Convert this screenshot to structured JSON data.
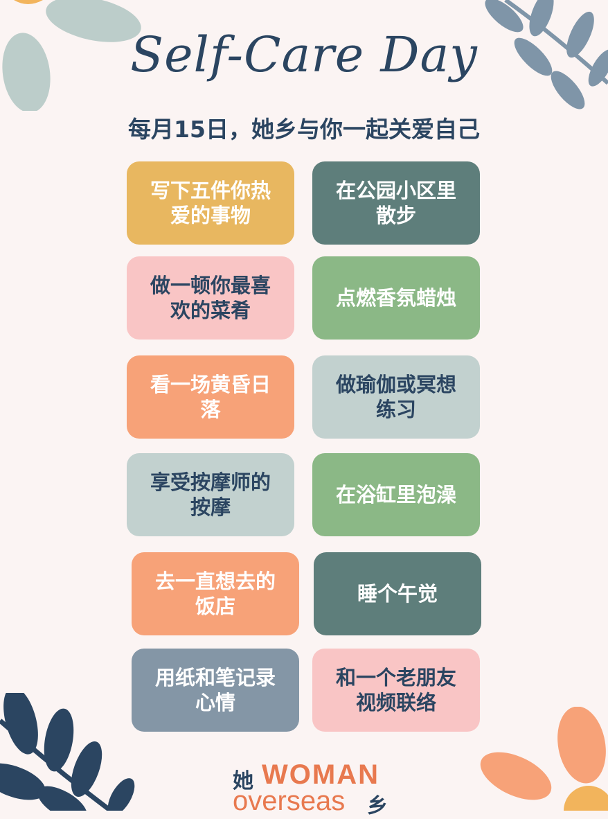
{
  "header": {
    "title": "Self-Care Day",
    "subtitle": "每月15日，她乡与你一起关爱自己"
  },
  "cards": [
    {
      "text": "写下五件你热爱的事物",
      "bg": "#e8b760",
      "fg": "#ffffff"
    },
    {
      "text": "在公园小区里散步",
      "bg": "#5e7e7b",
      "fg": "#ffffff"
    },
    {
      "text": "做一顿你最喜欢的菜肴",
      "bg": "#f9c5c5",
      "fg": "#2b4561"
    },
    {
      "text": "点燃香氛蜡烛",
      "bg": "#8bb886",
      "fg": "#ffffff"
    },
    {
      "text": "看一场黄昏日落",
      "bg": "#f7a278",
      "fg": "#ffffff"
    },
    {
      "text": "做瑜伽或冥想练习",
      "bg": "#c2d1cf",
      "fg": "#2b4561"
    },
    {
      "text": "享受按摩师的按摩",
      "bg": "#c2d1cf",
      "fg": "#2b4561"
    },
    {
      "text": "在浴缸里泡澡",
      "bg": "#8bb886",
      "fg": "#ffffff"
    },
    {
      "text": "去一直想去的饭店",
      "bg": "#f7a278",
      "fg": "#ffffff"
    },
    {
      "text": "睡个午觉",
      "bg": "#5e7e7b",
      "fg": "#ffffff"
    },
    {
      "text": "用纸和笔记录心情",
      "bg": "#8496a6",
      "fg": "#ffffff"
    },
    {
      "text": "和一个老朋友视频联络",
      "bg": "#f9c5c5",
      "fg": "#2b4561"
    }
  ],
  "logo": {
    "zh_top": "她",
    "en_top": "WOMAN",
    "en_bottom": "overseas",
    "zh_bottom": "乡"
  },
  "colors": {
    "background": "#fbf4f3",
    "navy": "#2b4561",
    "orange": "#e8794f",
    "leaf_blue": "#7f95a8",
    "leaf_mint": "#bccdca"
  }
}
